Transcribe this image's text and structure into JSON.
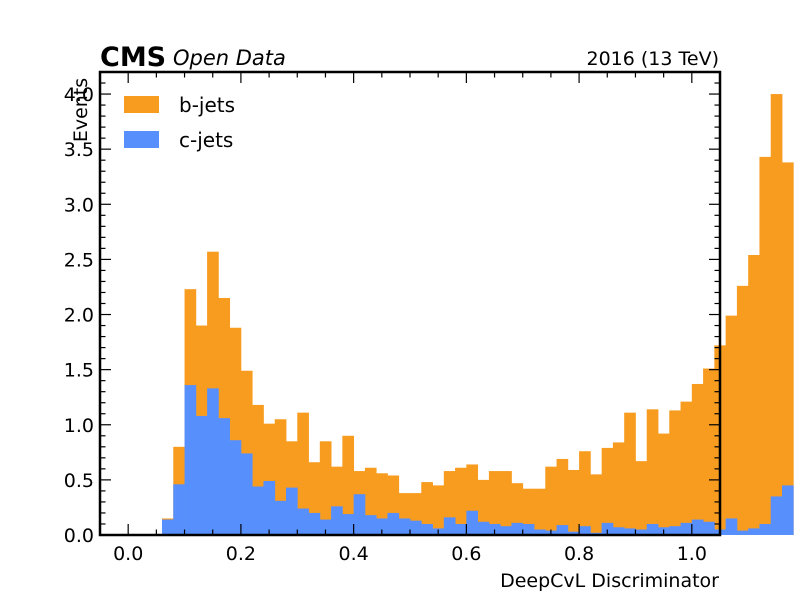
{
  "header": {
    "experiment": "CMS",
    "subtitle": "Open Data",
    "lumi": "2016 (13 TeV)"
  },
  "chart_data": {
    "type": "bar",
    "title": "",
    "xlabel": "DeepCvL Discriminator",
    "ylabel": "Events",
    "xlim": [
      -0.05,
      1.05
    ],
    "ylim": [
      0,
      4.2
    ],
    "xticks": [
      "0.0",
      "0.2",
      "0.4",
      "0.6",
      "0.8",
      "1.0"
    ],
    "yticks": [
      "0.0",
      "0.5",
      "1.0",
      "1.5",
      "2.0",
      "2.5",
      "3.0",
      "3.5",
      "4.0"
    ],
    "legend_position": "top-left",
    "bin_edges_start": 0.0,
    "bin_width": 0.02,
    "series": [
      {
        "name": "b-jets",
        "color": "#f89c20",
        "values": [
          0,
          0,
          0,
          0.15,
          0.8,
          2.23,
          1.9,
          2.57,
          2.15,
          1.88,
          1.49,
          1.18,
          1.01,
          1.05,
          0.85,
          1.11,
          0.66,
          0.85,
          0.62,
          0.9,
          0.58,
          0.61,
          0.56,
          0.54,
          0.38,
          0.38,
          0.48,
          0.45,
          0.58,
          0.61,
          0.64,
          0.5,
          0.58,
          0.58,
          0.47,
          0.42,
          0.42,
          0.62,
          0.69,
          0.59,
          0.76,
          0.55,
          0.79,
          0.84,
          1.11,
          0.67,
          1.14,
          0.92,
          1.13,
          1.21,
          1.37,
          1.51,
          1.72,
          1.99,
          2.26,
          2.54,
          3.43,
          4.0,
          3.38,
          0,
          0
        ]
      },
      {
        "name": "c-jets",
        "color": "#5790fc",
        "values": [
          0,
          0,
          0,
          0.14,
          0.46,
          1.36,
          1.08,
          1.33,
          1.06,
          0.86,
          0.74,
          0.44,
          0.49,
          0.31,
          0.43,
          0.24,
          0.2,
          0.14,
          0.26,
          0.19,
          0.37,
          0.18,
          0.15,
          0.2,
          0.15,
          0.13,
          0.1,
          0.06,
          0.16,
          0.1,
          0.22,
          0.12,
          0.1,
          0.08,
          0.11,
          0.1,
          0.05,
          0.04,
          0.09,
          0.03,
          0.08,
          0.02,
          0.11,
          0.07,
          0.06,
          0.05,
          0.1,
          0.07,
          0.08,
          0.11,
          0.14,
          0.12,
          0.05,
          0.15,
          0.04,
          0.06,
          0.1,
          0.35,
          0.45,
          0,
          0
        ]
      }
    ]
  }
}
